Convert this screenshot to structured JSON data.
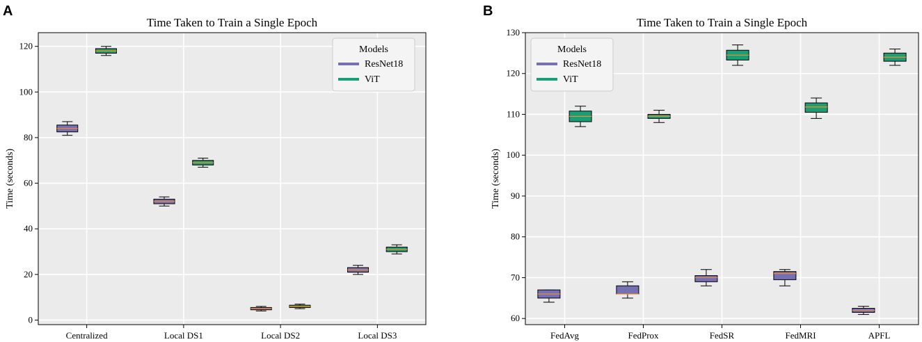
{
  "chart_data": [
    {
      "panel": "A",
      "type": "box",
      "title": "Time Taken to Train a Single Epoch",
      "xlabel": "",
      "ylabel": "Time (seconds)",
      "ylim": [
        -2,
        126
      ],
      "yticks": [
        0,
        20,
        40,
        60,
        80,
        100,
        120
      ],
      "grid": true,
      "legend": {
        "title": "Models",
        "placement": "top-right",
        "entries": [
          "ResNet18",
          "ViT"
        ]
      },
      "categories": [
        "Centralized",
        "Local DS1",
        "Local DS2",
        "Local DS3"
      ],
      "series": [
        {
          "name": "ResNet18",
          "color": "#7570b3",
          "boxes": [
            {
              "min": 81,
              "q1": 82.5,
              "median": 84,
              "q3": 85.5,
              "max": 87
            },
            {
              "min": 50,
              "q1": 51,
              "median": 52,
              "q3": 53,
              "max": 54
            },
            {
              "min": 4,
              "q1": 4.5,
              "median": 5,
              "q3": 5.5,
              "max": 6
            },
            {
              "min": 20,
              "q1": 21,
              "median": 22,
              "q3": 23,
              "max": 24
            }
          ]
        },
        {
          "name": "ViT",
          "color": "#1b9e77",
          "boxes": [
            {
              "min": 116,
              "q1": 117,
              "median": 118,
              "q3": 119,
              "max": 120
            },
            {
              "min": 67,
              "q1": 68,
              "median": 69,
              "q3": 70,
              "max": 71
            },
            {
              "min": 5,
              "q1": 5.5,
              "median": 6,
              "q3": 6.5,
              "max": 7
            },
            {
              "min": 29,
              "q1": 30,
              "median": 31,
              "q3": 32,
              "max": 33
            }
          ]
        }
      ]
    },
    {
      "panel": "B",
      "type": "box",
      "title": "Time Taken to Train a Single Epoch",
      "xlabel": "",
      "ylabel": "Time (seconds)",
      "ylim": [
        58.5,
        130
      ],
      "yticks": [
        60,
        70,
        80,
        90,
        100,
        110,
        120,
        130
      ],
      "grid": true,
      "legend": {
        "title": "Models",
        "placement": "top-left",
        "entries": [
          "ResNet18",
          "ViT"
        ]
      },
      "categories": [
        "FedAvg",
        "FedProx",
        "FedSR",
        "FedMRI",
        "APFL"
      ],
      "series": [
        {
          "name": "ResNet18",
          "color": "#7570b3",
          "boxes": [
            {
              "min": 64,
              "q1": 65,
              "median": 66,
              "q3": 67,
              "max": 67
            },
            {
              "min": 65,
              "q1": 66,
              "median": 66,
              "q3": 68,
              "max": 69
            },
            {
              "min": 68,
              "q1": 69,
              "median": 70,
              "q3": 70.5,
              "max": 72
            },
            {
              "min": 68,
              "q1": 69.5,
              "median": 71,
              "q3": 71.5,
              "max": 72
            },
            {
              "min": 61,
              "q1": 61.5,
              "median": 62,
              "q3": 62.5,
              "max": 63
            }
          ]
        },
        {
          "name": "ViT",
          "color": "#1b9e77",
          "boxes": [
            {
              "min": 107,
              "q1": 108.2,
              "median": 109.5,
              "q3": 110.8,
              "max": 112
            },
            {
              "min": 108,
              "q1": 109,
              "median": 109.5,
              "q3": 110,
              "max": 111
            },
            {
              "min": 122,
              "q1": 123.3,
              "median": 124.5,
              "q3": 125.7,
              "max": 127
            },
            {
              "min": 109,
              "q1": 110.5,
              "median": 111.8,
              "q3": 112.8,
              "max": 114
            },
            {
              "min": 122,
              "q1": 123,
              "median": 124,
              "q3": 125,
              "max": 126
            }
          ]
        }
      ]
    }
  ]
}
